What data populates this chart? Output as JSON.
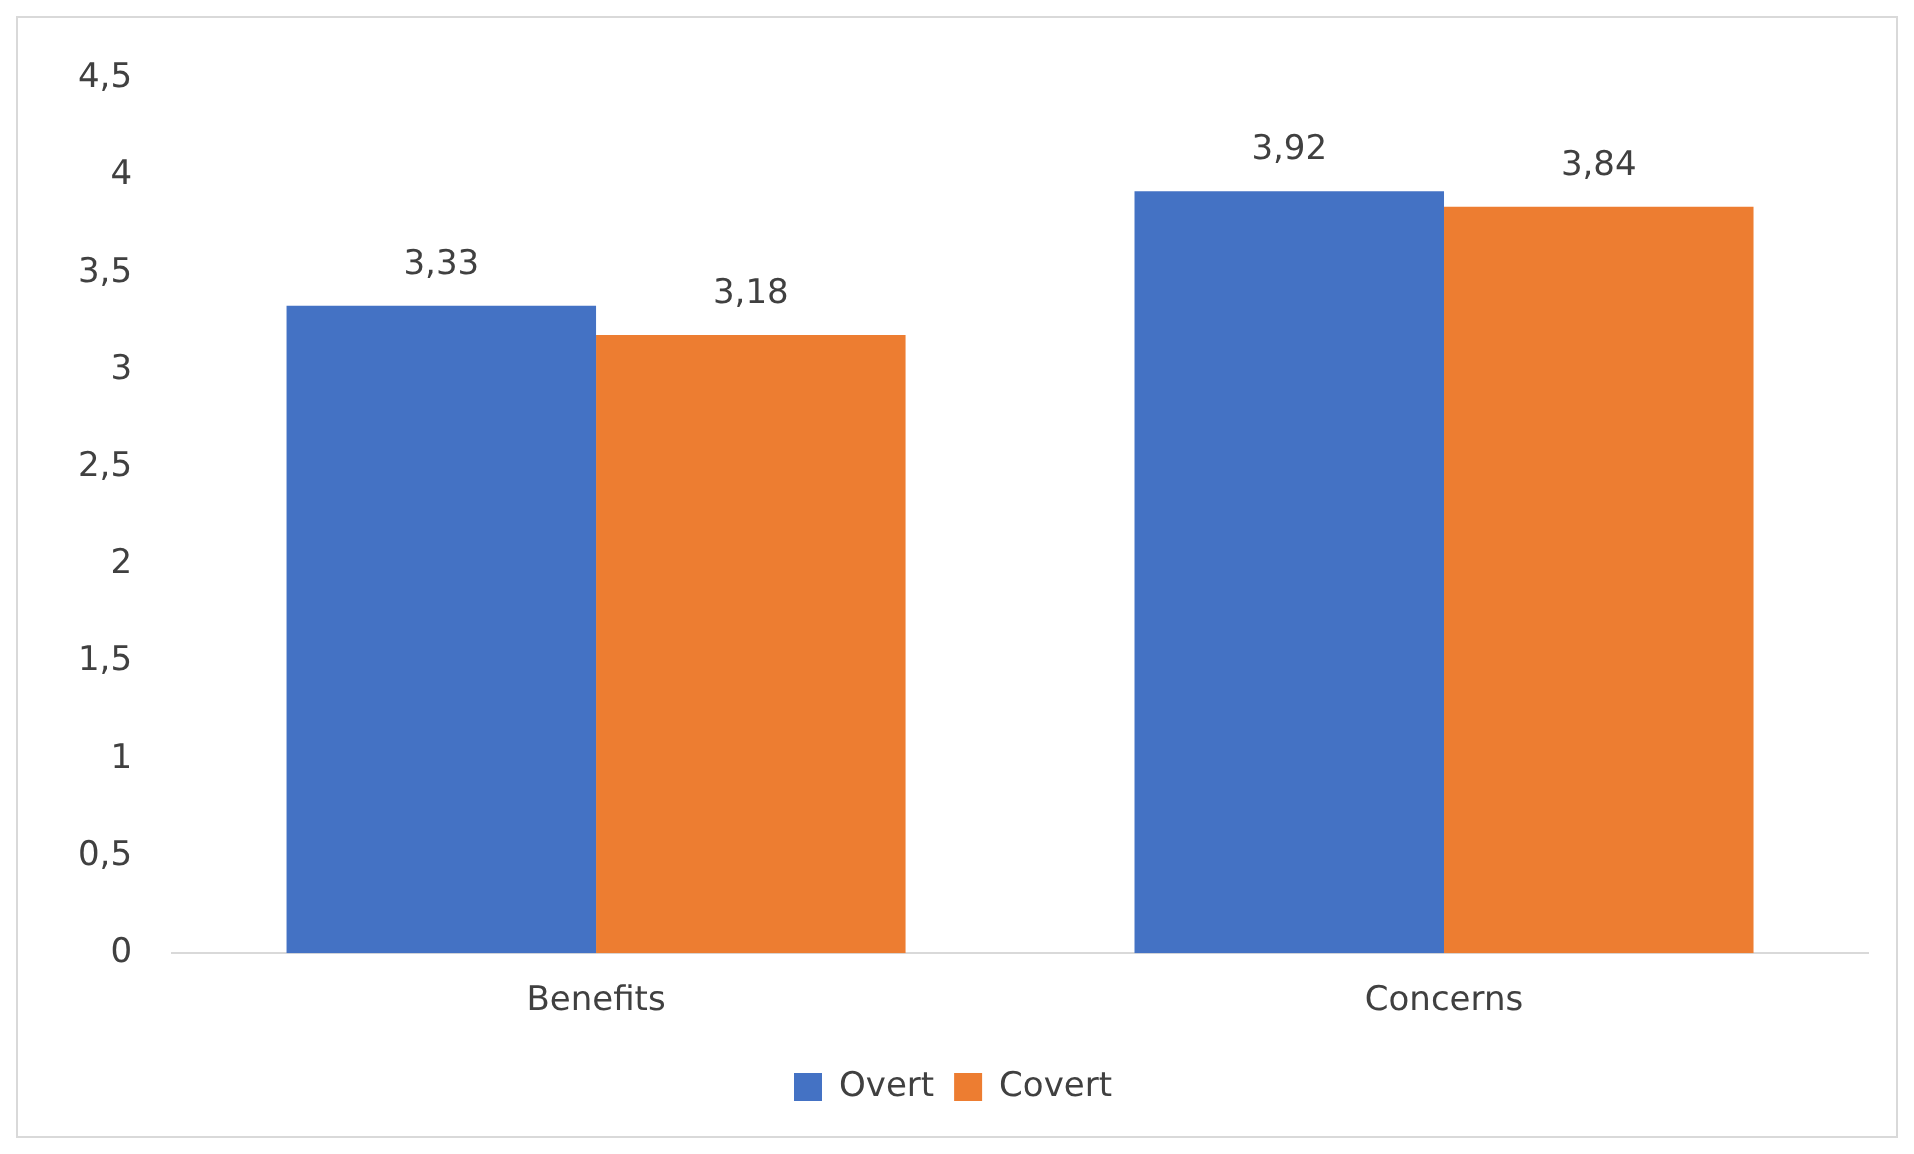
{
  "chart_data": {
    "type": "bar",
    "categories": [
      "Benefits",
      "Concerns"
    ],
    "series": [
      {
        "name": "Overt",
        "color": "#4472c4",
        "values": [
          3.33,
          3.92
        ],
        "value_labels": [
          "3,33",
          "3,92"
        ]
      },
      {
        "name": "Covert",
        "color": "#ed7d31",
        "values": [
          3.18,
          3.84
        ],
        "value_labels": [
          "3,18",
          "3,84"
        ]
      }
    ],
    "ylim": [
      0,
      4.5
    ],
    "yticks": [
      0,
      {
        "value": 0.5,
        "label": "0,5"
      },
      1,
      {
        "value": 1.5,
        "label": "1,5"
      },
      2,
      {
        "value": 2.5,
        "label": "2,5"
      },
      3,
      {
        "value": 3.5,
        "label": "3,5"
      },
      4,
      {
        "value": 4.5,
        "label": "4,5"
      }
    ],
    "grid": false,
    "legend": "bottom"
  }
}
